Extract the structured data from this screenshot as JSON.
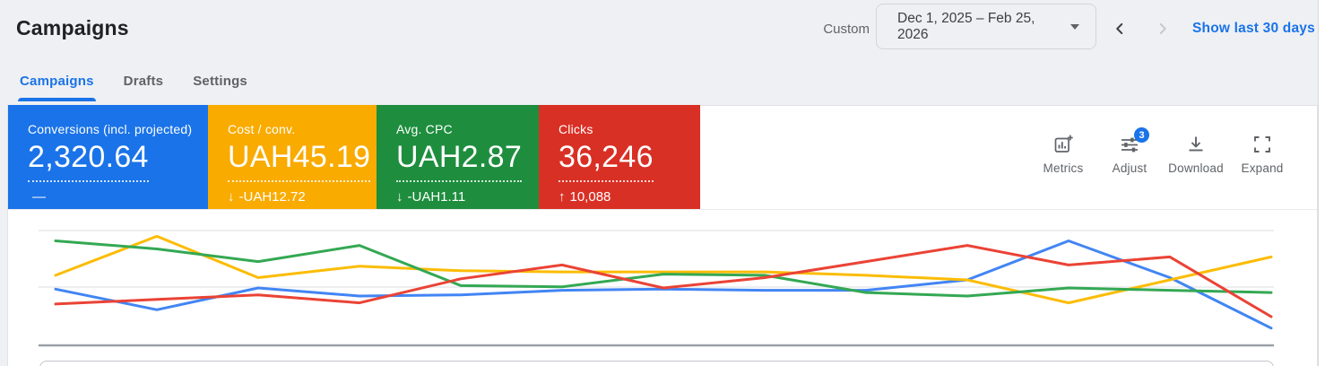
{
  "page": {
    "title": "Campaigns"
  },
  "header": {
    "date_range": {
      "mode_label": "Custom",
      "value": "Dec 1, 2025 – Feb 25, 2026",
      "shortcut_label": "Show last 30 days"
    },
    "tabs": [
      {
        "label": "Campaigns"
      },
      {
        "label": "Drafts"
      },
      {
        "label": "Settings"
      }
    ]
  },
  "scorecards": [
    {
      "label": "Conversions (incl. projected)",
      "value": "2,320.64",
      "change_arrow": "",
      "change_text": "—",
      "color": "#1a73e8"
    },
    {
      "label": "Cost / conv.",
      "value": "UAH45.19",
      "change_arrow": "↓",
      "change_text": "-UAH12.72",
      "color": "#f9ab00"
    },
    {
      "label": "Avg. CPC",
      "value": "UAH2.87",
      "change_arrow": "↓",
      "change_text": "-UAH1.11",
      "color": "#1e8e3e"
    },
    {
      "label": "Clicks",
      "value": "36,246",
      "change_arrow": "↑",
      "change_text": "10,088",
      "color": "#d93025"
    }
  ],
  "toolbar": {
    "metrics_label": "Metrics",
    "adjust_label": "Adjust",
    "adjust_badge": "3",
    "download_label": "Download",
    "expand_label": "Expand"
  },
  "chart_data": {
    "type": "line",
    "title": "",
    "xlabel": "",
    "ylabel": "",
    "x": [
      1,
      2,
      3,
      4,
      5,
      6,
      7,
      8,
      9,
      10,
      11,
      12,
      13
    ],
    "x_tick_labels_visible": false,
    "y_tick_labels_visible": false,
    "value_scale": "percent of plot height above baseline (no axis labels visible in screenshot)",
    "ylim": [
      0,
      100
    ],
    "grid": true,
    "legend_position": "none",
    "series": [
      {
        "name": "Conversions (incl. projected)",
        "color": "#4285f4",
        "values": [
          49,
          31,
          50,
          43,
          44,
          48,
          49,
          48,
          48,
          57,
          91,
          59,
          15
        ]
      },
      {
        "name": "Cost / conv.",
        "color": "#fbbc04",
        "values": [
          61,
          95,
          59,
          69,
          65,
          64,
          64,
          64,
          61,
          57,
          37,
          57,
          77
        ]
      },
      {
        "name": "Avg. CPC",
        "color": "#34a853",
        "values": [
          91,
          84,
          73,
          87,
          52,
          51,
          62,
          61,
          46,
          43,
          50,
          48,
          46
        ]
      },
      {
        "name": "Clicks",
        "color": "#ea4335",
        "values": [
          36,
          40,
          44,
          37,
          58,
          70,
          50,
          59,
          73,
          87,
          70,
          77,
          25
        ]
      }
    ]
  }
}
